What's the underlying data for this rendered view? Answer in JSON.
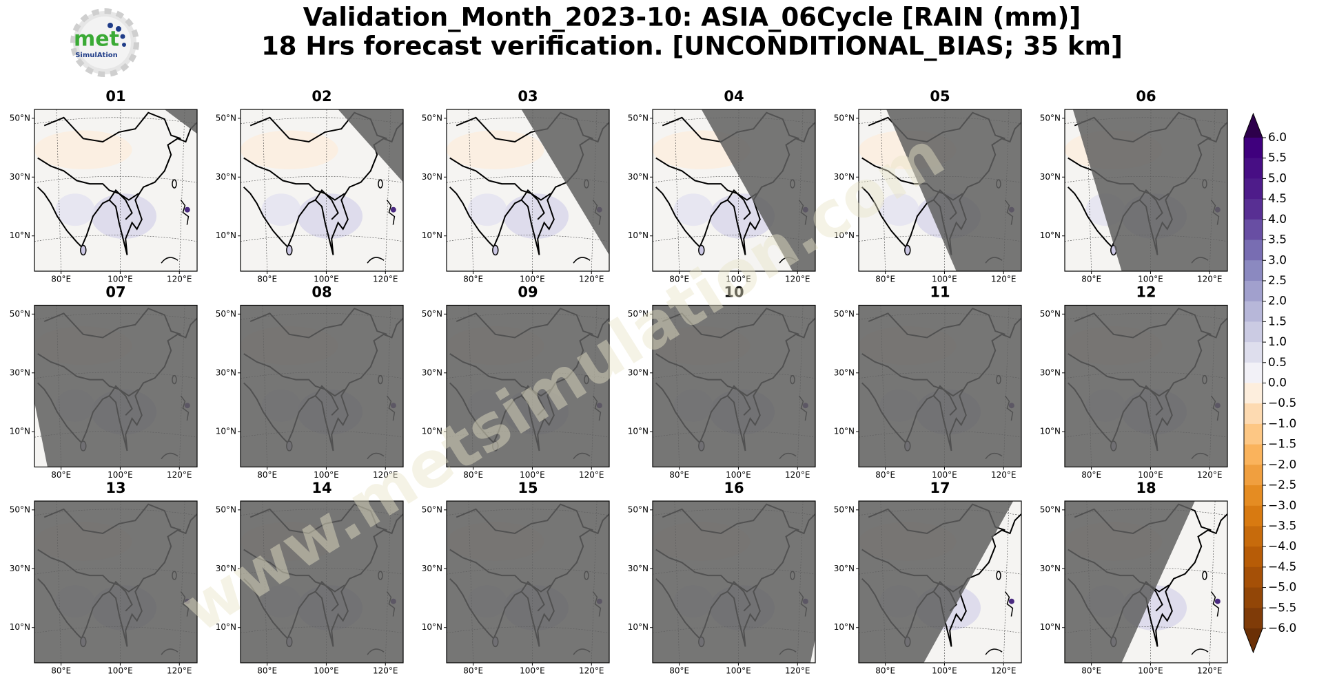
{
  "header": {
    "title_line1": "Validation_Month_2023-10: ASIA_06Cycle [RAIN (mm)]",
    "title_line2": "18 Hrs forecast verification. [UNCONDITIONAL_BIAS; 35 km]"
  },
  "logo": {
    "name": "met",
    "sub": "SimulAtion"
  },
  "watermark": "www.metsimulation.com",
  "panels": [
    "01",
    "02",
    "03",
    "04",
    "05",
    "06",
    "07",
    "08",
    "09",
    "10",
    "11",
    "12",
    "13",
    "14",
    "15",
    "16",
    "17",
    "18"
  ],
  "axes": {
    "xlim": [
      71,
      126
    ],
    "ylim": [
      -2,
      53
    ],
    "xticks": [
      {
        "value": 80,
        "label": "80°E"
      },
      {
        "value": 100,
        "label": "100°E"
      },
      {
        "value": 120,
        "label": "120°E"
      }
    ],
    "yticks": [
      {
        "value": 50,
        "label": "50°N"
      },
      {
        "value": 30,
        "label": "30°N"
      },
      {
        "value": 10,
        "label": "10°N"
      }
    ]
  },
  "colorbar": {
    "ticks": [
      {
        "value": 6,
        "label": "6.0"
      },
      {
        "value": 5.5,
        "label": "5.5"
      },
      {
        "value": 5,
        "label": "5.0"
      },
      {
        "value": 4.5,
        "label": "4.5"
      },
      {
        "value": 4,
        "label": "4.0"
      },
      {
        "value": 3.5,
        "label": "3.5"
      },
      {
        "value": 3,
        "label": "3.0"
      },
      {
        "value": 2.5,
        "label": "2.5"
      },
      {
        "value": 2,
        "label": "2.0"
      },
      {
        "value": 1.5,
        "label": "1.5"
      },
      {
        "value": 1,
        "label": "1.0"
      },
      {
        "value": 0.5,
        "label": "0.5"
      },
      {
        "value": 0,
        "label": "0.0"
      },
      {
        "value": -0.5,
        "label": "−0.5"
      },
      {
        "value": -1,
        "label": "−1.0"
      },
      {
        "value": -1.5,
        "label": "−1.5"
      },
      {
        "value": -2,
        "label": "−2.0"
      },
      {
        "value": -2.5,
        "label": "−2.5"
      },
      {
        "value": -3,
        "label": "−3.0"
      },
      {
        "value": -3.5,
        "label": "−3.5"
      },
      {
        "value": -4,
        "label": "−4.0"
      },
      {
        "value": -4.5,
        "label": "−4.5"
      },
      {
        "value": -5,
        "label": "−5.0"
      },
      {
        "value": -5.5,
        "label": "−5.5"
      },
      {
        "value": -6,
        "label": "−6.0"
      }
    ]
  }
}
